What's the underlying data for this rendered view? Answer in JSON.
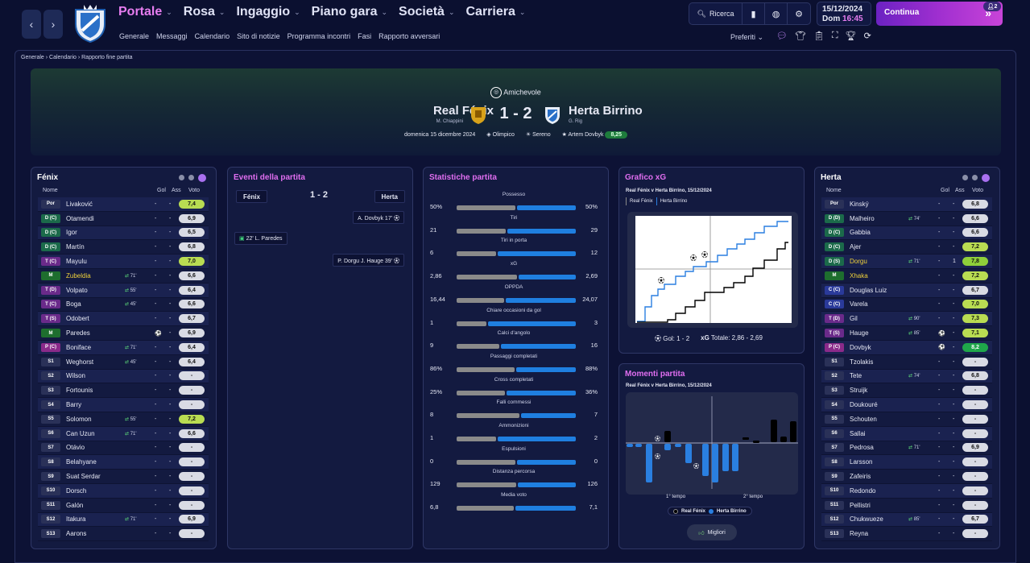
{
  "nav": {
    "main": [
      {
        "label": "Portale",
        "active": true
      },
      {
        "label": "Rosa",
        "active": false
      },
      {
        "label": "Ingaggio",
        "active": false
      },
      {
        "label": "Piano gara",
        "active": false
      },
      {
        "label": "Società",
        "active": false
      },
      {
        "label": "Carriera",
        "active": false
      }
    ],
    "sub": [
      "Generale",
      "Messaggi",
      "Calendario",
      "Sito di notizie",
      "Programma incontri",
      "Fasi",
      "Rapporto avversari"
    ],
    "search_label": "Ricerca",
    "date": "15/12/2024",
    "day": "Dom",
    "time": "16:45",
    "continue_label": "Continua",
    "continue_badge": "2",
    "preferiti_label": "Preferiti"
  },
  "breadcrumb": [
    "Generale",
    "Calendario",
    "Rapporto fine partita"
  ],
  "match": {
    "competition": "Amichevole",
    "home_team": "Real Fénix",
    "home_manager": "M. Chiappini",
    "score": "1 - 2",
    "away_team": "Herta Birrino",
    "away_manager": "G. Rig",
    "date_text": "domenica 15 dicembre 2024",
    "stadium": "Olimpico",
    "weather": "Sereno",
    "player_of_match": "Artem Dovbyk",
    "pom_rating": "8,25"
  },
  "home_panel": {
    "title": "Fénix",
    "headers": {
      "name": "Nome",
      "goals": "Gol",
      "assists": "Ass",
      "rating": "Voto"
    },
    "players": [
      {
        "pos": "Por",
        "name": "Livaković",
        "sub": "",
        "g": "-",
        "a": "-",
        "r": "7,4",
        "hl": false
      },
      {
        "pos": "D (C)",
        "name": "Otamendi",
        "sub": "",
        "g": "-",
        "a": "-",
        "r": "6,9",
        "hl": false
      },
      {
        "pos": "D (C)",
        "name": "Igor",
        "sub": "",
        "g": "-",
        "a": "-",
        "r": "6,5",
        "hl": false
      },
      {
        "pos": "D (C)",
        "name": "Martín",
        "sub": "",
        "g": "-",
        "a": "-",
        "r": "6,8",
        "hl": false
      },
      {
        "pos": "T (C)",
        "name": "Mayulu",
        "sub": "",
        "g": "-",
        "a": "-",
        "r": "7,0",
        "hl": false
      },
      {
        "pos": "M",
        "name": "Zubeldia",
        "sub": "71'",
        "g": "-",
        "a": "-",
        "r": "6,6",
        "hl": true
      },
      {
        "pos": "T (D)",
        "name": "Volpato",
        "sub": "55'",
        "g": "-",
        "a": "-",
        "r": "6,4",
        "hl": false
      },
      {
        "pos": "T (C)",
        "name": "Boga",
        "sub": "45'",
        "g": "-",
        "a": "-",
        "r": "6,6",
        "hl": false
      },
      {
        "pos": "T (S)",
        "name": "Odobert",
        "sub": "",
        "g": "-",
        "a": "-",
        "r": "6,7",
        "hl": false
      },
      {
        "pos": "M",
        "name": "Paredes",
        "sub": "",
        "g": "⚽",
        "a": "-",
        "r": "6,9",
        "hl": false
      },
      {
        "pos": "P (C)",
        "name": "Boniface",
        "sub": "71'",
        "g": "-",
        "a": "-",
        "r": "6,4",
        "hl": false
      },
      {
        "pos": "S1",
        "name": "Weghorst",
        "sub": "45'",
        "g": "-",
        "a": "-",
        "r": "6,4",
        "hl": false
      },
      {
        "pos": "S2",
        "name": "Wilson",
        "sub": "",
        "g": "-",
        "a": "-",
        "r": "-",
        "hl": false
      },
      {
        "pos": "S3",
        "name": "Fortounis",
        "sub": "",
        "g": "-",
        "a": "-",
        "r": "-",
        "hl": false
      },
      {
        "pos": "S4",
        "name": "Barry",
        "sub": "",
        "g": "-",
        "a": "-",
        "r": "-",
        "hl": false
      },
      {
        "pos": "S5",
        "name": "Solomon",
        "sub": "55'",
        "g": "-",
        "a": "-",
        "r": "7,2",
        "hl": false
      },
      {
        "pos": "S6",
        "name": "Can Uzun",
        "sub": "71'",
        "g": "-",
        "a": "-",
        "r": "6,6",
        "hl": false
      },
      {
        "pos": "S7",
        "name": "Otávio",
        "sub": "",
        "g": "-",
        "a": "-",
        "r": "-",
        "hl": false
      },
      {
        "pos": "S8",
        "name": "Belahyane",
        "sub": "",
        "g": "-",
        "a": "-",
        "r": "-",
        "hl": false
      },
      {
        "pos": "S9",
        "name": "Suat Serdar",
        "sub": "",
        "g": "-",
        "a": "-",
        "r": "-",
        "hl": false
      },
      {
        "pos": "S10",
        "name": "Dorsch",
        "sub": "",
        "g": "-",
        "a": "-",
        "r": "-",
        "hl": false
      },
      {
        "pos": "S11",
        "name": "Galón",
        "sub": "",
        "g": "-",
        "a": "-",
        "r": "-",
        "hl": false
      },
      {
        "pos": "S12",
        "name": "Itakura",
        "sub": "71'",
        "g": "-",
        "a": "-",
        "r": "6,9",
        "hl": false
      },
      {
        "pos": "S13",
        "name": "Aarons",
        "sub": "",
        "g": "-",
        "a": "-",
        "r": "-",
        "hl": false
      }
    ]
  },
  "events": {
    "title": "Eventi della partita",
    "home_short": "Fénix",
    "score": "1 - 2",
    "away_short": "Herta",
    "items": [
      {
        "text": "A. Dovbyk 17'",
        "side": "away"
      },
      {
        "text": "22' L. Paredes",
        "side": "home"
      },
      {
        "text": "P. Dorgu  J. Hauge 39'",
        "side": "away"
      }
    ]
  },
  "stats": {
    "title": "Statistiche partita",
    "rows": [
      {
        "label": "Possesso",
        "home": "50%",
        "away": "50%",
        "hv": 50,
        "av": 50
      },
      {
        "label": "Tiri",
        "home": "21",
        "away": "29",
        "hv": 21,
        "av": 29
      },
      {
        "label": "Tiri in porta",
        "home": "6",
        "away": "12",
        "hv": 6,
        "av": 12
      },
      {
        "label": "xG",
        "home": "2,86",
        "away": "2,69",
        "hv": 2.86,
        "av": 2.69
      },
      {
        "label": "OPPDA",
        "home": "16,44",
        "away": "24,07",
        "hv": 16.44,
        "av": 24.07
      },
      {
        "label": "Chiare occasioni da gol",
        "home": "1",
        "away": "3",
        "hv": 1,
        "av": 3
      },
      {
        "label": "Calci d'angolo",
        "home": "9",
        "away": "16",
        "hv": 9,
        "av": 16
      },
      {
        "label": "Passaggi completati",
        "home": "86%",
        "away": "88%",
        "hv": 86,
        "av": 88
      },
      {
        "label": "Cross completati",
        "home": "25%",
        "away": "36%",
        "hv": 25,
        "av": 36
      },
      {
        "label": "Falli commessi",
        "home": "8",
        "away": "7",
        "hv": 8,
        "av": 7
      },
      {
        "label": "Ammonizioni",
        "home": "1",
        "away": "2",
        "hv": 1,
        "av": 2
      },
      {
        "label": "Espulsioni",
        "home": "0",
        "away": "0",
        "hv": 0,
        "av": 0
      },
      {
        "label": "Distanza percorsa",
        "home": "129",
        "away": "126",
        "hv": 129,
        "av": 126
      },
      {
        "label": "Media voto",
        "home": "6,8",
        "away": "7,1",
        "hv": 6.8,
        "av": 7.1
      }
    ]
  },
  "xg": {
    "title": "Grafico xG",
    "subtitle": "Real Fénix v Herta Birrino, 15/12/2024",
    "legend_home": "Real Fénix",
    "legend_away": "Herta Birrino",
    "goals_label": "Gol: 1 - 2",
    "xg_total_label": "Totale: 2,86 - 2,69",
    "home_color": "#2a7fe0",
    "away_color": "#000000"
  },
  "moments": {
    "title": "Momenti partita",
    "subtitle": "Real Fénix v Herta Birrino, 15/12/2024",
    "first_half": "1° tempo",
    "second_half": "2° tempo",
    "legend_home": "Real Fénix",
    "legend_away": "Herta Birrino",
    "button": "Migliori"
  },
  "away_panel": {
    "title": "Herta",
    "headers": {
      "name": "Nome",
      "goals": "Gol",
      "assists": "Ass",
      "rating": "Voto"
    },
    "players": [
      {
        "pos": "Por",
        "name": "Kinský",
        "sub": "",
        "g": "-",
        "a": "-",
        "r": "6,8",
        "hl": false
      },
      {
        "pos": "D (D)",
        "name": "Malheiro",
        "sub": "74'",
        "g": "-",
        "a": "-",
        "r": "6,6",
        "hl": false
      },
      {
        "pos": "D (C)",
        "name": "Gabbia",
        "sub": "",
        "g": "-",
        "a": "-",
        "r": "6,6",
        "hl": false
      },
      {
        "pos": "D (C)",
        "name": "Ajer",
        "sub": "",
        "g": "-",
        "a": "-",
        "r": "7,2",
        "hl": false
      },
      {
        "pos": "D (S)",
        "name": "Dorgu",
        "sub": "71'",
        "g": "-",
        "a": "1",
        "r": "7,8",
        "hl": true
      },
      {
        "pos": "M",
        "name": "Xhaka",
        "sub": "",
        "g": "-",
        "a": "-",
        "r": "7,2",
        "hl": true
      },
      {
        "pos": "C (C)",
        "name": "Douglas Luiz",
        "sub": "",
        "g": "-",
        "a": "-",
        "r": "6,7",
        "hl": false
      },
      {
        "pos": "C (C)",
        "name": "Varela",
        "sub": "",
        "g": "-",
        "a": "-",
        "r": "7,0",
        "hl": false
      },
      {
        "pos": "T (D)",
        "name": "Gil",
        "sub": "90'",
        "g": "-",
        "a": "-",
        "r": "7,3",
        "hl": false
      },
      {
        "pos": "T (S)",
        "name": "Hauge",
        "sub": "85'",
        "g": "⚽",
        "a": "-",
        "r": "7,1",
        "hl": false
      },
      {
        "pos": "P (C)",
        "name": "Dovbyk",
        "sub": "",
        "g": "⚽",
        "a": "-",
        "r": "8,2",
        "hl": false
      },
      {
        "pos": "S1",
        "name": "Tzolakis",
        "sub": "",
        "g": "-",
        "a": "-",
        "r": "-",
        "hl": false
      },
      {
        "pos": "S2",
        "name": "Tete",
        "sub": "74'",
        "g": "-",
        "a": "-",
        "r": "6,8",
        "hl": false
      },
      {
        "pos": "S3",
        "name": "Struijk",
        "sub": "",
        "g": "-",
        "a": "-",
        "r": "-",
        "hl": false
      },
      {
        "pos": "S4",
        "name": "Doukouré",
        "sub": "",
        "g": "-",
        "a": "-",
        "r": "-",
        "hl": false
      },
      {
        "pos": "S5",
        "name": "Schouten",
        "sub": "",
        "g": "-",
        "a": "-",
        "r": "-",
        "hl": false
      },
      {
        "pos": "S6",
        "name": "Sallai",
        "sub": "",
        "g": "-",
        "a": "-",
        "r": "-",
        "hl": false
      },
      {
        "pos": "S7",
        "name": "Pedrosa",
        "sub": "71'",
        "g": "-",
        "a": "-",
        "r": "6,9",
        "hl": false
      },
      {
        "pos": "S8",
        "name": "Larsson",
        "sub": "",
        "g": "-",
        "a": "-",
        "r": "-",
        "hl": false
      },
      {
        "pos": "S9",
        "name": "Zafeiris",
        "sub": "",
        "g": "-",
        "a": "-",
        "r": "-",
        "hl": false
      },
      {
        "pos": "S10",
        "name": "Redondo",
        "sub": "",
        "g": "-",
        "a": "-",
        "r": "-",
        "hl": false
      },
      {
        "pos": "S11",
        "name": "Pellistri",
        "sub": "",
        "g": "-",
        "a": "-",
        "r": "-",
        "hl": false
      },
      {
        "pos": "S12",
        "name": "Chukwueze",
        "sub": "85'",
        "g": "-",
        "a": "-",
        "r": "6,7",
        "hl": false
      },
      {
        "pos": "S13",
        "name": "Reyna",
        "sub": "",
        "g": "-",
        "a": "-",
        "r": "-",
        "hl": false
      }
    ]
  }
}
